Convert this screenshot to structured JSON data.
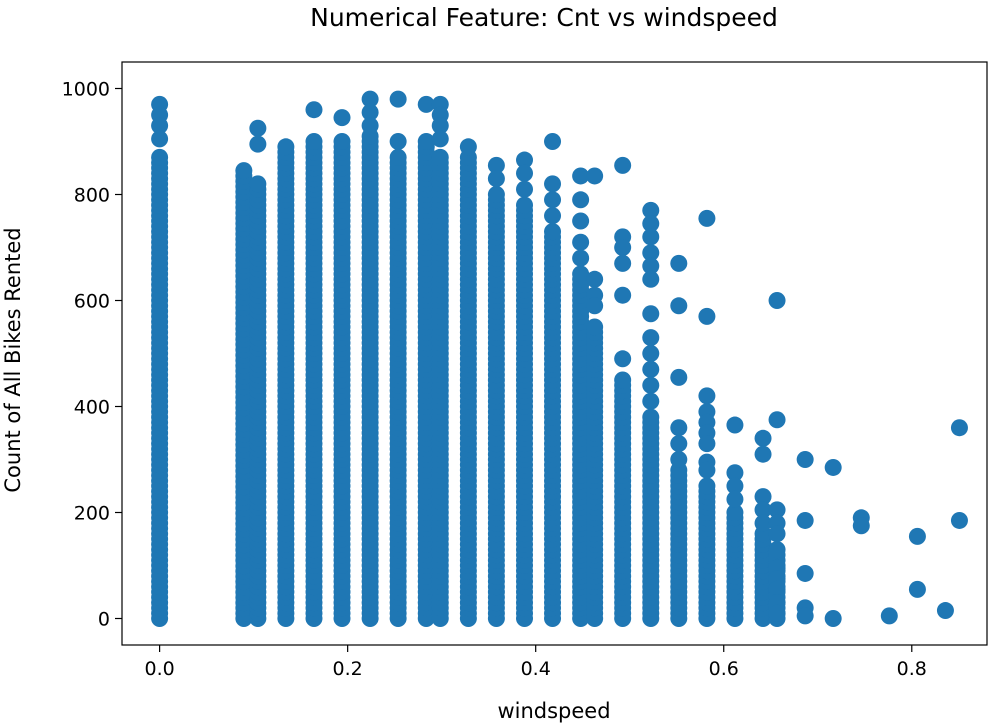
{
  "chart_data": {
    "type": "scatter",
    "title": "Numerical Feature: Cnt vs windspeed",
    "xlabel": "windspeed",
    "ylabel": "Count of All Bikes Rented",
    "xlim": [
      -0.04,
      0.88
    ],
    "ylim": [
      -50,
      1050
    ],
    "x_ticks": [
      0.0,
      0.2,
      0.4,
      0.6,
      0.8
    ],
    "x_tick_labels": [
      "0.0",
      "0.2",
      "0.4",
      "0.6",
      "0.8"
    ],
    "y_ticks": [
      0,
      200,
      400,
      600,
      800,
      1000
    ],
    "y_tick_labels": [
      "0",
      "200",
      "400",
      "600",
      "800",
      "1000"
    ],
    "grid": false,
    "legend": "none",
    "marker_color": "#1f77b4",
    "columns": [
      {
        "x": 0.0,
        "ymin": 0,
        "ymax": 870
      },
      {
        "x": 0.0896,
        "ymin": 0,
        "ymax": 835
      },
      {
        "x": 0.1045,
        "ymin": 0,
        "ymax": 820
      },
      {
        "x": 0.1343,
        "ymin": 0,
        "ymax": 890
      },
      {
        "x": 0.1642,
        "ymin": 0,
        "ymax": 900
      },
      {
        "x": 0.194,
        "ymin": 0,
        "ymax": 900
      },
      {
        "x": 0.2239,
        "ymin": 0,
        "ymax": 910
      },
      {
        "x": 0.2537,
        "ymin": 0,
        "ymax": 870
      },
      {
        "x": 0.2836,
        "ymin": 0,
        "ymax": 900
      },
      {
        "x": 0.2985,
        "ymin": 0,
        "ymax": 870
      },
      {
        "x": 0.3284,
        "ymin": 0,
        "ymax": 870
      },
      {
        "x": 0.3582,
        "ymin": 0,
        "ymax": 800
      },
      {
        "x": 0.3881,
        "ymin": 0,
        "ymax": 780
      },
      {
        "x": 0.4179,
        "ymin": 0,
        "ymax": 730
      },
      {
        "x": 0.4478,
        "ymin": 0,
        "ymax": 650
      },
      {
        "x": 0.4627,
        "ymin": 0,
        "ymax": 550
      },
      {
        "x": 0.4925,
        "ymin": 0,
        "ymax": 450
      },
      {
        "x": 0.5224,
        "ymin": 0,
        "ymax": 380
      },
      {
        "x": 0.5522,
        "ymin": 0,
        "ymax": 280
      },
      {
        "x": 0.5821,
        "ymin": 0,
        "ymax": 250
      },
      {
        "x": 0.6119,
        "ymin": 0,
        "ymax": 200
      },
      {
        "x": 0.6418,
        "ymin": 0,
        "ymax": 160
      },
      {
        "x": 0.6567,
        "ymin": 0,
        "ymax": 130
      }
    ],
    "points": [
      {
        "x": 0.0,
        "y": 970
      },
      {
        "x": 0.0,
        "y": 950
      },
      {
        "x": 0.0,
        "y": 930
      },
      {
        "x": 0.0,
        "y": 905
      },
      {
        "x": 0.1045,
        "y": 925
      },
      {
        "x": 0.1045,
        "y": 895
      },
      {
        "x": 0.0896,
        "y": 845
      },
      {
        "x": 0.1642,
        "y": 960
      },
      {
        "x": 0.194,
        "y": 945
      },
      {
        "x": 0.2239,
        "y": 980
      },
      {
        "x": 0.2239,
        "y": 955
      },
      {
        "x": 0.2239,
        "y": 930
      },
      {
        "x": 0.2537,
        "y": 980
      },
      {
        "x": 0.2537,
        "y": 900
      },
      {
        "x": 0.2836,
        "y": 970
      },
      {
        "x": 0.2985,
        "y": 970
      },
      {
        "x": 0.2985,
        "y": 950
      },
      {
        "x": 0.2985,
        "y": 930
      },
      {
        "x": 0.2985,
        "y": 905
      },
      {
        "x": 0.3284,
        "y": 890
      },
      {
        "x": 0.3582,
        "y": 855
      },
      {
        "x": 0.3582,
        "y": 830
      },
      {
        "x": 0.3881,
        "y": 865
      },
      {
        "x": 0.3881,
        "y": 840
      },
      {
        "x": 0.3881,
        "y": 810
      },
      {
        "x": 0.4179,
        "y": 900
      },
      {
        "x": 0.4179,
        "y": 820
      },
      {
        "x": 0.4179,
        "y": 790
      },
      {
        "x": 0.4179,
        "y": 760
      },
      {
        "x": 0.4478,
        "y": 835
      },
      {
        "x": 0.4478,
        "y": 790
      },
      {
        "x": 0.4478,
        "y": 750
      },
      {
        "x": 0.4478,
        "y": 710
      },
      {
        "x": 0.4478,
        "y": 680
      },
      {
        "x": 0.4627,
        "y": 835
      },
      {
        "x": 0.4627,
        "y": 640
      },
      {
        "x": 0.4627,
        "y": 610
      },
      {
        "x": 0.4627,
        "y": 590
      },
      {
        "x": 0.4925,
        "y": 855
      },
      {
        "x": 0.4925,
        "y": 720
      },
      {
        "x": 0.4925,
        "y": 700
      },
      {
        "x": 0.4925,
        "y": 670
      },
      {
        "x": 0.4925,
        "y": 610
      },
      {
        "x": 0.4925,
        "y": 490
      },
      {
        "x": 0.5224,
        "y": 770
      },
      {
        "x": 0.5224,
        "y": 745
      },
      {
        "x": 0.5224,
        "y": 720
      },
      {
        "x": 0.5224,
        "y": 690
      },
      {
        "x": 0.5224,
        "y": 665
      },
      {
        "x": 0.5224,
        "y": 640
      },
      {
        "x": 0.5224,
        "y": 575
      },
      {
        "x": 0.5224,
        "y": 530
      },
      {
        "x": 0.5224,
        "y": 500
      },
      {
        "x": 0.5224,
        "y": 470
      },
      {
        "x": 0.5224,
        "y": 440
      },
      {
        "x": 0.5224,
        "y": 410
      },
      {
        "x": 0.5522,
        "y": 670
      },
      {
        "x": 0.5522,
        "y": 590
      },
      {
        "x": 0.5522,
        "y": 455
      },
      {
        "x": 0.5522,
        "y": 360
      },
      {
        "x": 0.5522,
        "y": 330
      },
      {
        "x": 0.5522,
        "y": 300
      },
      {
        "x": 0.5821,
        "y": 755
      },
      {
        "x": 0.5821,
        "y": 570
      },
      {
        "x": 0.5821,
        "y": 420
      },
      {
        "x": 0.5821,
        "y": 390
      },
      {
        "x": 0.5821,
        "y": 370
      },
      {
        "x": 0.5821,
        "y": 350
      },
      {
        "x": 0.5821,
        "y": 330
      },
      {
        "x": 0.5821,
        "y": 295
      },
      {
        "x": 0.5821,
        "y": 280
      },
      {
        "x": 0.6119,
        "y": 365
      },
      {
        "x": 0.6119,
        "y": 275
      },
      {
        "x": 0.6119,
        "y": 250
      },
      {
        "x": 0.6119,
        "y": 225
      },
      {
        "x": 0.6418,
        "y": 340
      },
      {
        "x": 0.6418,
        "y": 310
      },
      {
        "x": 0.6418,
        "y": 230
      },
      {
        "x": 0.6418,
        "y": 205
      },
      {
        "x": 0.6418,
        "y": 180
      },
      {
        "x": 0.6567,
        "y": 600
      },
      {
        "x": 0.6567,
        "y": 375
      },
      {
        "x": 0.6567,
        "y": 205
      },
      {
        "x": 0.6567,
        "y": 180
      },
      {
        "x": 0.6567,
        "y": 160
      },
      {
        "x": 0.6567,
        "y": 95
      },
      {
        "x": 0.6567,
        "y": 75
      },
      {
        "x": 0.6567,
        "y": 55
      },
      {
        "x": 0.6567,
        "y": 30
      },
      {
        "x": 0.6567,
        "y": 10
      },
      {
        "x": 0.6866,
        "y": 300
      },
      {
        "x": 0.6866,
        "y": 185
      },
      {
        "x": 0.6866,
        "y": 85
      },
      {
        "x": 0.6866,
        "y": 20
      },
      {
        "x": 0.6866,
        "y": 5
      },
      {
        "x": 0.7164,
        "y": 285
      },
      {
        "x": 0.7164,
        "y": 0
      },
      {
        "x": 0.7463,
        "y": 190
      },
      {
        "x": 0.7463,
        "y": 175
      },
      {
        "x": 0.7761,
        "y": 5
      },
      {
        "x": 0.806,
        "y": 155
      },
      {
        "x": 0.806,
        "y": 55
      },
      {
        "x": 0.8358,
        "y": 15
      },
      {
        "x": 0.8507,
        "y": 360
      },
      {
        "x": 0.8507,
        "y": 185
      }
    ]
  }
}
